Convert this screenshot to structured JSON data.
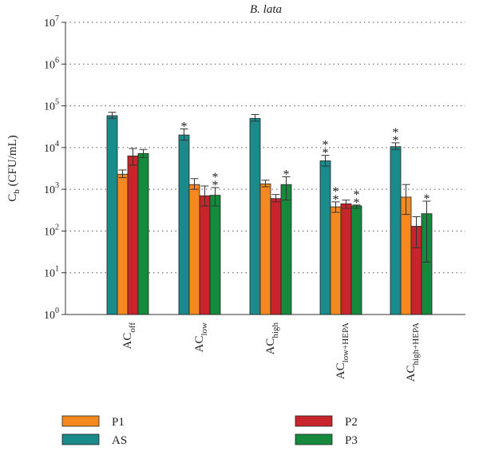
{
  "chart_data": {
    "type": "bar",
    "title": "B. lata",
    "ylabel": {
      "base": "C",
      "sub": "b",
      "rest": " (CFU/mL)"
    },
    "yscale": "log",
    "ylim": [
      1,
      10000000
    ],
    "yticks": [
      {
        "value": 1,
        "base": "10",
        "exp": "0"
      },
      {
        "value": 10,
        "base": "10",
        "exp": "1"
      },
      {
        "value": 100,
        "base": "10",
        "exp": "2"
      },
      {
        "value": 1000,
        "base": "10",
        "exp": "3"
      },
      {
        "value": 10000,
        "base": "10",
        "exp": "4"
      },
      {
        "value": 100000,
        "base": "10",
        "exp": "5"
      },
      {
        "value": 1000000,
        "base": "10",
        "exp": "6"
      },
      {
        "value": 10000000,
        "base": "10",
        "exp": "7"
      }
    ],
    "grid": "horizontal-dotted",
    "categories": [
      {
        "base": "AC",
        "sub": "off"
      },
      {
        "base": "AC",
        "sub": "low"
      },
      {
        "base": "AC",
        "sub": "high"
      },
      {
        "base": "AC",
        "sub": "low+HEPA"
      },
      {
        "base": "AC",
        "sub": "high+HEPA"
      }
    ],
    "series": [
      {
        "name": "AS",
        "color": "#1a8a8a",
        "values": [
          58000,
          20000,
          50000,
          4800,
          10500
        ],
        "err_low": [
          50000,
          15000,
          43000,
          3600,
          9000
        ],
        "err_high": [
          70000,
          28000,
          62000,
          6500,
          13000
        ],
        "stars": [
          "",
          "*",
          "",
          "**",
          "**"
        ]
      },
      {
        "name": "P1",
        "color": "#f5891f",
        "values": [
          2300,
          1300,
          1350,
          380,
          650
        ],
        "err_low": [
          1900,
          1000,
          1150,
          280,
          250
        ],
        "err_high": [
          2900,
          1800,
          1650,
          500,
          1300
        ],
        "stars": [
          "",
          "",
          "",
          "**",
          ""
        ]
      },
      {
        "name": "P2",
        "color": "#c8242b",
        "values": [
          6300,
          700,
          600,
          450,
          130
        ],
        "err_low": [
          3800,
          400,
          500,
          350,
          40
        ],
        "err_high": [
          9500,
          1200,
          750,
          550,
          220
        ],
        "stars": [
          "",
          "",
          "",
          "",
          ""
        ]
      },
      {
        "name": "P3",
        "color": "#158a3c",
        "values": [
          7200,
          720,
          1300,
          400,
          260
        ],
        "err_low": [
          5800,
          400,
          550,
          350,
          18
        ],
        "err_high": [
          9000,
          1100,
          2000,
          420,
          520
        ],
        "stars": [
          "",
          "**",
          "*",
          "**",
          "*"
        ]
      }
    ],
    "legend": {
      "placement": "bottom",
      "order": [
        "P1",
        "P2",
        "AS",
        "P3"
      ]
    }
  }
}
